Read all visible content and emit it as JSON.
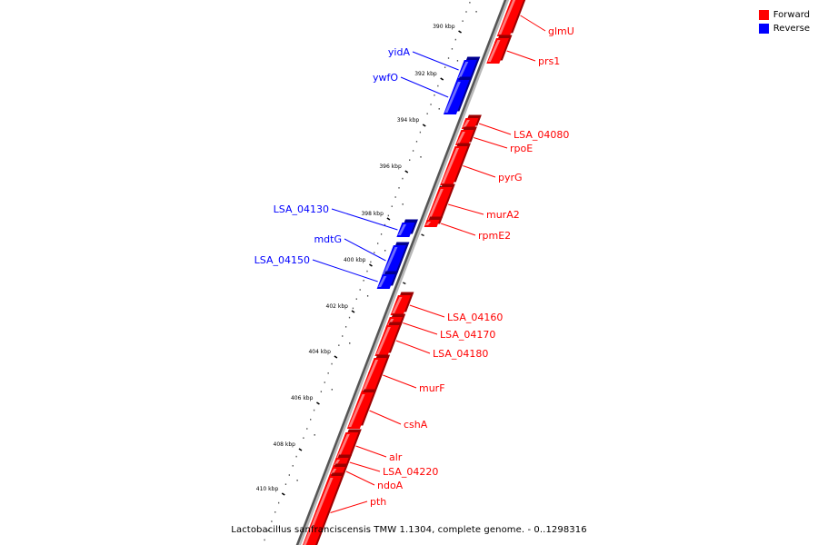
{
  "legend": {
    "forward": {
      "label": "Forward",
      "color": "#ff0000"
    },
    "reverse": {
      "label": "Reverse",
      "color": "#0000ff"
    }
  },
  "footer": {
    "caption": "Lactobacillus sanfranciscensis TMW 1.1304, complete genome. - 0..1298316"
  },
  "scale": {
    "tick_labels": [
      "390 kbp",
      "392 kbp",
      "394 kbp",
      "396 kbp",
      "398 kbp",
      "400 kbp",
      "402 kbp",
      "404 kbp",
      "406 kbp",
      "408 kbp",
      "410 kbp"
    ]
  },
  "genes": [
    {
      "name": "glmU",
      "strand": "forward"
    },
    {
      "name": "prs1",
      "strand": "forward"
    },
    {
      "name": "yidA",
      "strand": "reverse"
    },
    {
      "name": "ywfO",
      "strand": "reverse"
    },
    {
      "name": "LSA_04080",
      "strand": "forward"
    },
    {
      "name": "rpoE",
      "strand": "forward"
    },
    {
      "name": "pyrG",
      "strand": "forward"
    },
    {
      "name": "murA2",
      "strand": "forward"
    },
    {
      "name": "rpmE2",
      "strand": "forward"
    },
    {
      "name": "LSA_04130",
      "strand": "reverse"
    },
    {
      "name": "mdtG",
      "strand": "reverse"
    },
    {
      "name": "LSA_04150",
      "strand": "reverse"
    },
    {
      "name": "LSA_04160",
      "strand": "forward"
    },
    {
      "name": "LSA_04170",
      "strand": "forward"
    },
    {
      "name": "LSA_04180",
      "strand": "forward"
    },
    {
      "name": "murF",
      "strand": "forward"
    },
    {
      "name": "cshA",
      "strand": "forward"
    },
    {
      "name": "alr",
      "strand": "forward"
    },
    {
      "name": "LSA_04220",
      "strand": "forward"
    },
    {
      "name": "ndoA",
      "strand": "forward"
    },
    {
      "name": "pth",
      "strand": "forward"
    }
  ]
}
